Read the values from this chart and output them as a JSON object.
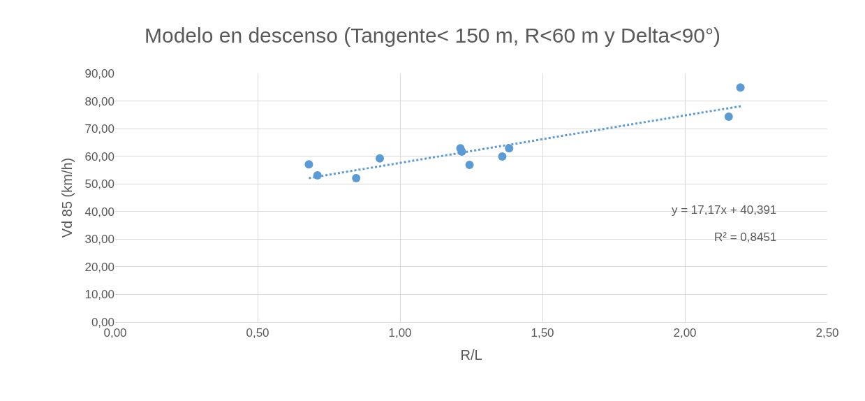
{
  "chart_data": {
    "type": "scatter",
    "title": "Modelo en descenso (Tangente< 150 m, R<60 m y Delta<90°)",
    "xlabel": "R/L",
    "ylabel": "Vd 85 (km/h)",
    "annotations": [
      "y = 17,17x + 40,391",
      "R² = 0,8451"
    ],
    "series": [
      {
        "color": "#5b9bd5",
        "marker": "circle",
        "x": [
          0.68,
          0.71,
          0.846,
          0.929,
          1.212,
          1.217,
          1.244,
          1.359,
          1.383,
          2.154,
          2.195
        ],
        "values": [
          57.1,
          53.1,
          52.1,
          59.2,
          62.9,
          61.7,
          56.9,
          59.9,
          62.9,
          74.3,
          84.9
        ]
      },
      {
        "type": "line",
        "color": "#5b9bd5",
        "line_style": "dotted",
        "x": [
          0.68,
          2.2
        ],
        "values": [
          52.1,
          78.2
        ]
      }
    ],
    "grid": true,
    "xlim": [
      0,
      2.5
    ],
    "xticks": [
      {
        "value": 0,
        "label": "0,00"
      },
      {
        "value": 0.5,
        "label": "0,50"
      },
      {
        "value": 1,
        "label": "1,00"
      },
      {
        "value": 1.5,
        "label": "1,50"
      },
      {
        "value": 2,
        "label": "2,00"
      },
      {
        "value": 2.5,
        "label": "2,50"
      }
    ],
    "ylim": [
      0,
      90
    ],
    "yticks": [
      {
        "value": 0,
        "label": "0,00"
      },
      {
        "value": 10,
        "label": "10,00"
      },
      {
        "value": 20,
        "label": "20,00"
      },
      {
        "value": 30,
        "label": "30,00"
      },
      {
        "value": 40,
        "label": "40,00"
      },
      {
        "value": 50,
        "label": "50,00"
      },
      {
        "value": 60,
        "label": "60,00"
      },
      {
        "value": 70,
        "label": "70,00"
      },
      {
        "value": 80,
        "label": "80,00"
      },
      {
        "value": 90,
        "label": "90,00"
      }
    ]
  }
}
